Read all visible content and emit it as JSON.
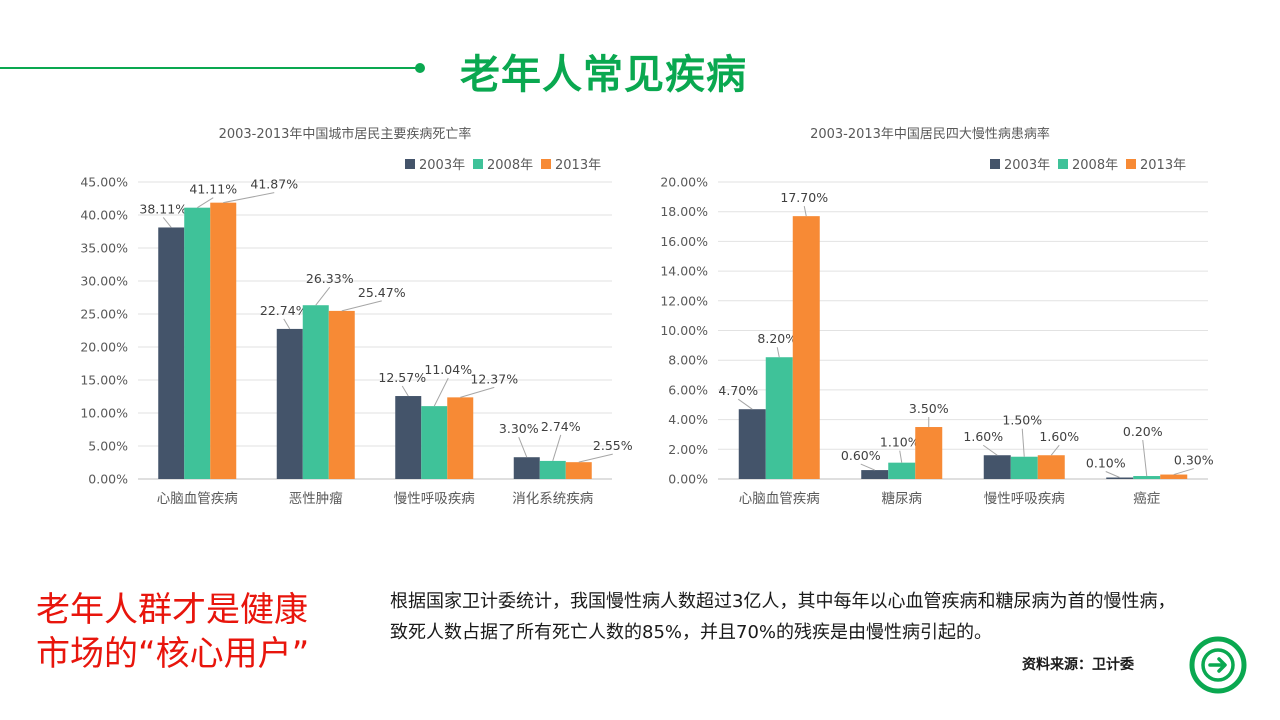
{
  "header": {
    "title": "老年人常见疾病"
  },
  "legend": [
    "2003年",
    "2008年",
    "2013年"
  ],
  "colors": {
    "s2003": "#44546a",
    "s2008": "#3fc299",
    "s2013": "#f78a35",
    "accent": "#0aa850",
    "headline": "#e8150c"
  },
  "chart_data": [
    {
      "type": "bar",
      "title": "2003-2013年中国城市居民主要疾病死亡率",
      "categories": [
        "心脑血管疾病",
        "恶性肿瘤",
        "慢性呼吸疾病",
        "消化系统疾病"
      ],
      "series": [
        {
          "name": "2003年",
          "values": [
            38.11,
            22.74,
            12.57,
            3.3
          ]
        },
        {
          "name": "2008年",
          "values": [
            41.11,
            26.33,
            11.04,
            2.74
          ]
        },
        {
          "name": "2013年",
          "values": [
            41.87,
            25.47,
            12.37,
            2.55
          ]
        }
      ],
      "labels": [
        [
          "38.11%",
          "22.74%",
          "12.57%",
          "3.30%"
        ],
        [
          "41.11%",
          "26.33%",
          "11.04%",
          "2.74%"
        ],
        [
          "41.87%",
          "25.47%",
          "12.37%",
          "2.55%"
        ]
      ],
      "ylim": [
        0,
        45
      ],
      "yticks": [
        "0.00%",
        "5.00%",
        "10.00%",
        "15.00%",
        "20.00%",
        "25.00%",
        "30.00%",
        "35.00%",
        "40.00%",
        "45.00%"
      ],
      "grid": true,
      "legend_position": "top-right"
    },
    {
      "type": "bar",
      "title": "2003-2013年中国居民四大慢性病患病率",
      "categories": [
        "心脑血管疾病",
        "糖尿病",
        "慢性呼吸疾病",
        "癌症"
      ],
      "series": [
        {
          "name": "2003年",
          "values": [
            4.7,
            0.6,
            1.6,
            0.1
          ]
        },
        {
          "name": "2008年",
          "values": [
            8.2,
            1.1,
            1.5,
            0.2
          ]
        },
        {
          "name": "2013年",
          "values": [
            17.7,
            3.5,
            1.6,
            0.3
          ]
        }
      ],
      "labels": [
        [
          "4.70%",
          "0.60%",
          "1.60%",
          "0.10%"
        ],
        [
          "8.20%",
          "1.10%",
          "1.50%",
          "0.20%"
        ],
        [
          "17.70%",
          "3.50%",
          "1.60%",
          "0.30%"
        ]
      ],
      "ylim": [
        0,
        20
      ],
      "yticks": [
        "0.00%",
        "2.00%",
        "4.00%",
        "6.00%",
        "8.00%",
        "10.00%",
        "12.00%",
        "14.00%",
        "16.00%",
        "18.00%",
        "20.00%"
      ],
      "grid": true,
      "legend_position": "top-right"
    }
  ],
  "headline": {
    "line1": "老年人群才是健康",
    "line2": "市场的“核心用户”"
  },
  "body": {
    "text": "根据国家卫计委统计，我国慢性病人数超过3亿人，其中每年以心血管疾病和糖尿病为首的慢性病，致死人数占据了所有死亡人数的85%，并且70%的残疾是由慢性病引起的。"
  },
  "source": {
    "label": "资料来源：卫计委"
  },
  "nav": {
    "next_icon": "arrow-right-circle-icon"
  }
}
